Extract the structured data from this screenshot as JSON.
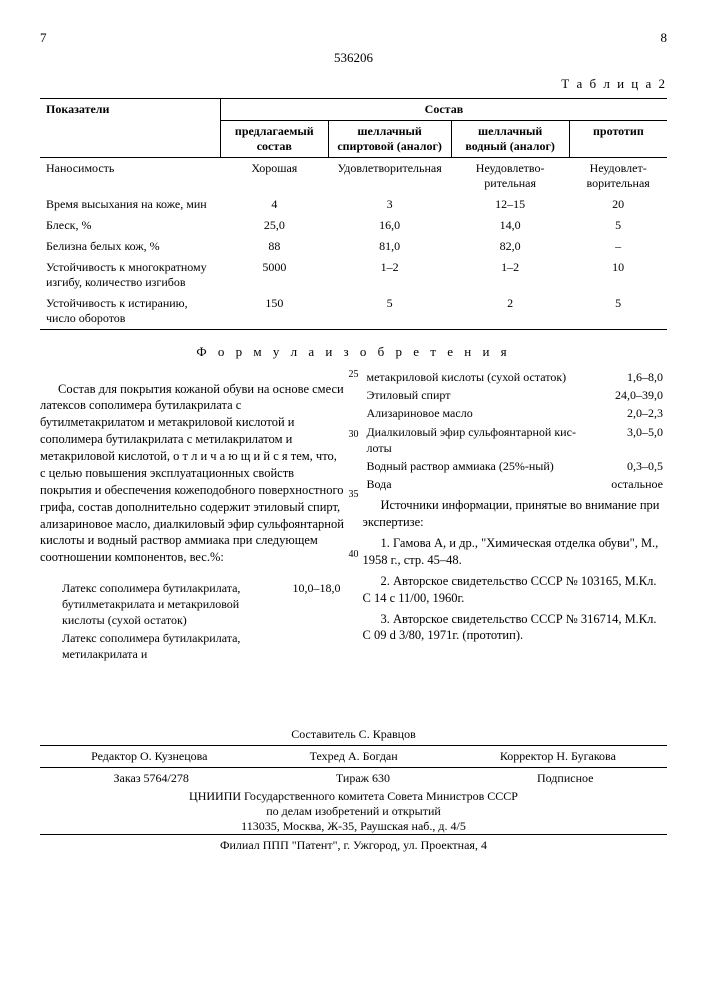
{
  "doc_number": "536206",
  "page_left": "7",
  "page_right": "8",
  "table_caption": "Т а б л и ц а  2",
  "table": {
    "header_indicator": "Показатели",
    "header_group": "Состав",
    "cols": [
      "предлагаемый состав",
      "шеллачный спиртовой (аналог)",
      "шеллачный водный (аналог)",
      "прототип"
    ],
    "rows": [
      {
        "label": "Наносимость",
        "v": [
          "Хорошая",
          "Удовлетво­рительная",
          "Неудовлетво­рительная",
          "Неудовлет­ворительная"
        ]
      },
      {
        "label": "Время высыхания на коже, мин",
        "v": [
          "4",
          "3",
          "12–15",
          "20"
        ]
      },
      {
        "label": "Блеск, %",
        "v": [
          "25,0",
          "16,0",
          "14,0",
          "5"
        ]
      },
      {
        "label": "Белизна белых кож, %",
        "v": [
          "88",
          "81,0",
          "82,0",
          "–"
        ]
      },
      {
        "label": "Устойчивость к многократ­ному изгибу, количество изгибов",
        "v": [
          "5000",
          "1–2",
          "1–2",
          "10"
        ]
      },
      {
        "label": "Устойчивость к истиранию, число оборотов",
        "v": [
          "150",
          "5",
          "2",
          "5"
        ]
      }
    ]
  },
  "formula_title": "Ф о р м у л а  и з о б р е т е н и я",
  "body_left_1": "Состав для покрытия кожаной обуви на основе смеси латексов сополимера бутил­акрилата с бутилметакрилатом и метакри­ловой кислотой и сополимера бутилакрила­та с метилакрилатом и метакриловой кис­лотой,  о т л и ч а ю щ и й с я  тем, что, с целью повышения эксплуатационных свойств покрытия и обеспечения кожепо­добного поверхностного грифа, состав до­полнительно содержит этиловый спирт, ализариновое масло, диалкиловый эфир суль­фоянтарной кислоты и водный раствор ам­миака при следующем соотношении компо­нентов, вес.%:",
  "components_left": [
    {
      "name": "Латекс сополимера бутил­акрилата, бутилметакрила­та и метакриловой кисло­ты (сухой остаток)",
      "val": "10,0–18,0"
    },
    {
      "name": "Латекс сополимера бутил­акрилата, метилакрилата и",
      "val": ""
    }
  ],
  "components_right": [
    {
      "name": "метакриловой кислоты (сухой остаток)",
      "val": "1,6–8,0"
    },
    {
      "name": "Этиловый спирт",
      "val": "24,0–39,0"
    },
    {
      "name": "Ализариновое масло",
      "val": "2,0–2,3"
    },
    {
      "name": "Диалкиловый эфир сульфоянтарной кис­лоты",
      "val": "3,0–5,0"
    },
    {
      "name": "Водный раствор ам­миака (25%-ный)",
      "val": "0,3–0,5"
    },
    {
      "name": "Вода",
      "val": "остальное"
    }
  ],
  "refs_title": "Источники информации, принятые во вни­мание при экспертизе:",
  "refs": [
    "1. Гамова А, и др., \"Химическая отдел­ка обуви\", М., 1958 г., стр. 45–48.",
    "2. Авторское свидетельство СССР № 103165, М.Кл. С 14 с 11/00, 1960г.",
    "3. Авторское свидетельство СССР № 316714, М.Кл. С 09 d 3/80, 1971г. (прототип)."
  ],
  "line_numbers": [
    "25",
    "30",
    "35",
    "40"
  ],
  "footer": {
    "compiler": "Составитель С. Кравцов",
    "editor": "Редактор О. Кузнецова",
    "techred": "Техред   А. Богдан",
    "corrector": "Корректор Н. Бугакова",
    "order": "Заказ 5764/278",
    "tirazh": "Тираж 630",
    "podpisnoe": "Подписное",
    "org1": "ЦНИИПИ Государственного комитета Совета Министров СССР",
    "org2": "по делам изобретений и открытий",
    "addr": "113035, Москва, Ж-35, Раушская наб., д. 4/5",
    "filial": "Филиал ППП \"Патент\", г. Ужгород, ул. Проектная, 4"
  }
}
